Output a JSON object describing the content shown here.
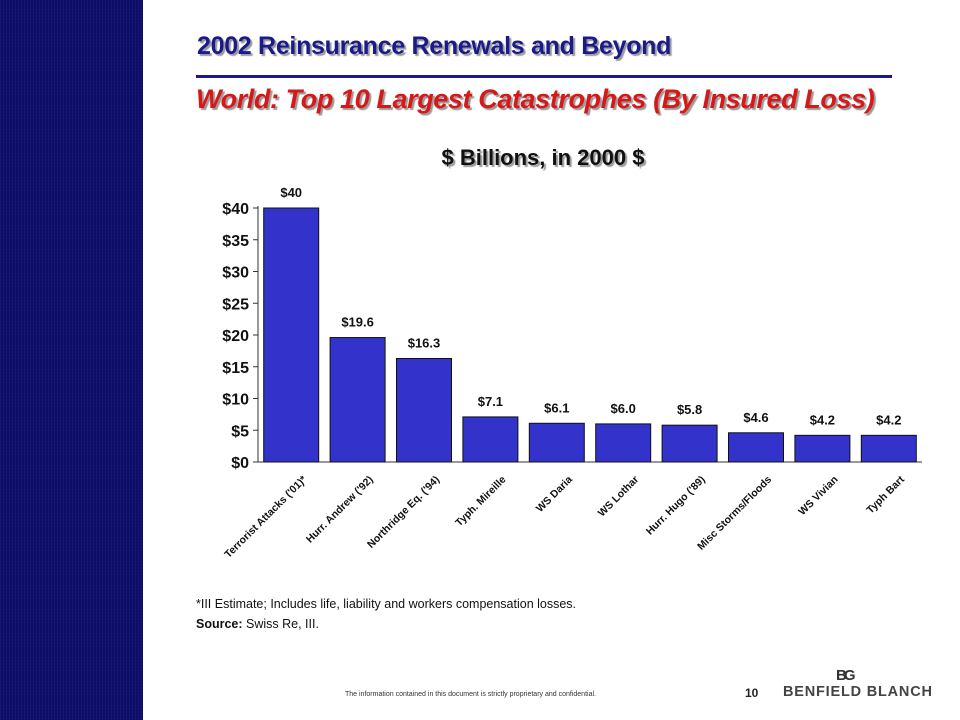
{
  "slide": {
    "title": "2002 Reinsurance Renewals and Beyond",
    "subtitle": "World:   Top 10 Largest Catastrophes (By Insured Loss)",
    "chart_unit": "$ Billions, in 2000 $",
    "footnote_line1": "*III Estimate; Includes life, liability and workers compensation losses.",
    "source_label": "Source:",
    "source_text": " Swiss Re, III.",
    "confidential": "The information contained in this document is strictly proprietary and confidential.",
    "page_number": "10",
    "logo_mark": "BG",
    "logo_text": "BENFIELD BLANCH"
  },
  "colors": {
    "sidebar": "#0d0d6b",
    "bar": "#3333cc",
    "title": "#1a1a8c",
    "subtitle": "#d81818"
  },
  "chart_data": {
    "type": "bar",
    "title": "$ Billions, in 2000 $",
    "categories": [
      "Terrorist Attacks ('01)*",
      "Hurr. Andrew ('92)",
      "Northridge Eq. ('94)",
      "Typh. Mireille",
      "WS Daria",
      "WS Lothar",
      "Hurr. Hugo ('89)",
      "Misc Storms/Floods",
      "WS Vivian",
      "Typh Bart"
    ],
    "values": [
      40,
      19.6,
      16.3,
      7.1,
      6.1,
      6.0,
      5.8,
      4.6,
      4.2,
      4.2
    ],
    "data_labels": [
      "$40",
      "$19.6",
      "$16.3",
      "$7.1",
      "$6.1",
      "$6.0",
      "$5.8",
      "$4.6",
      "$4.2",
      "$4.2"
    ],
    "y_ticks": [
      0,
      5,
      10,
      15,
      20,
      25,
      30,
      35,
      40
    ],
    "y_tick_labels": [
      "$0",
      "$5",
      "$10",
      "$15",
      "$20",
      "$25",
      "$30",
      "$35",
      "$40"
    ],
    "ylim": [
      0,
      40
    ],
    "grid": false,
    "legend": "none"
  }
}
